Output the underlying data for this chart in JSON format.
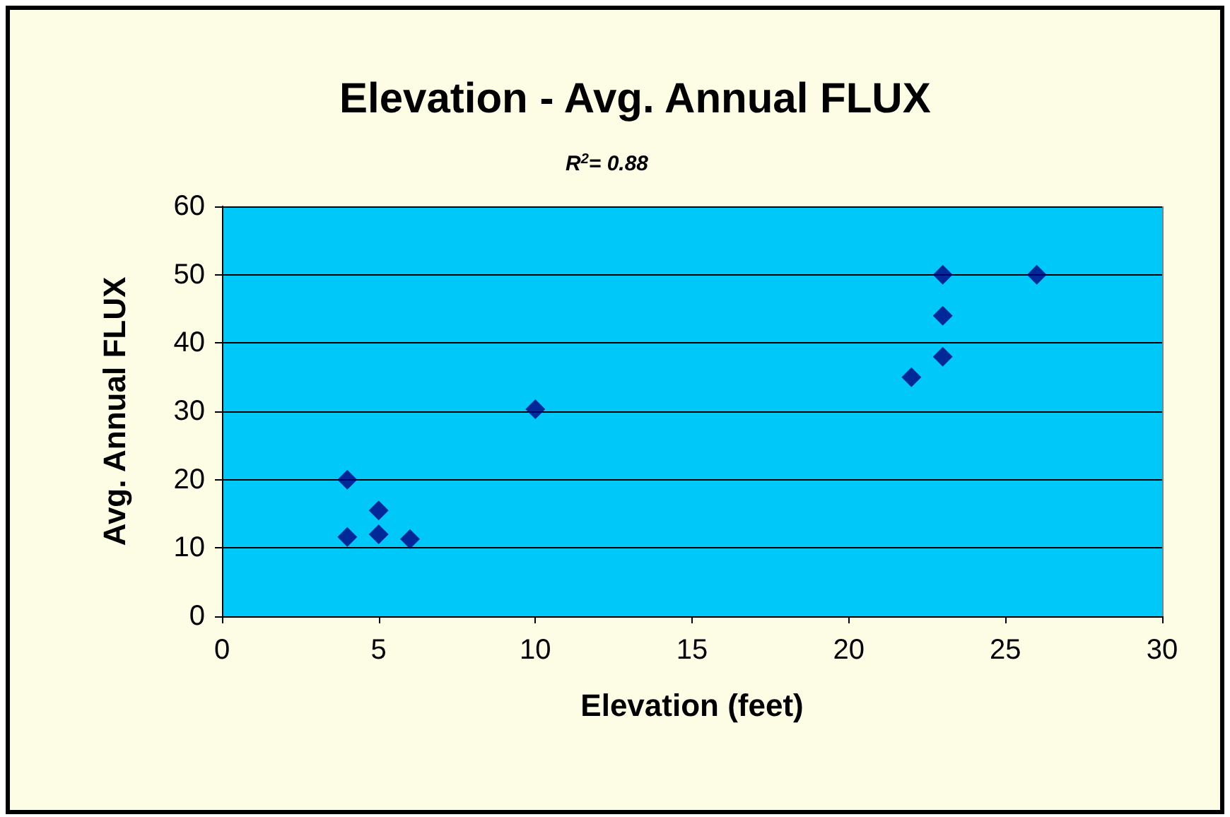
{
  "chart_data": {
    "type": "scatter",
    "title": "Elevation - Avg. Annual FLUX",
    "xlabel": "Elevation (feet)",
    "ylabel": "Avg. Annual FLUX",
    "annotations": [
      "R$^{2}$= 0.88"
    ],
    "x": [
      4,
      4,
      5,
      5,
      6,
      10,
      22,
      23,
      23,
      23,
      26
    ],
    "series": [
      {
        "color": "#00007f",
        "values": [
          20,
          11.6,
          15.5,
          12,
          11.3,
          30.3,
          35,
          38,
          44,
          50,
          50
        ]
      }
    ],
    "xlim": [
      0,
      30
    ],
    "xticks": [
      0,
      5,
      10,
      15,
      20,
      25,
      30
    ],
    "ylim": [
      0,
      60
    ],
    "yticks": [
      0,
      10,
      20,
      30,
      40,
      50,
      60
    ],
    "grid": "y",
    "marker": "diamond"
  }
}
